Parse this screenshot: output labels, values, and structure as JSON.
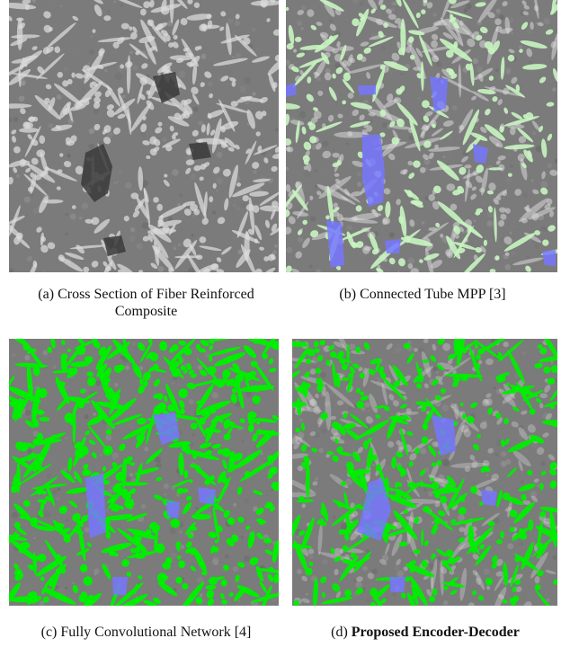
{
  "figure": {
    "panels": [
      {
        "id": "a",
        "caption_label": "(a)",
        "caption_text": "Cross Section of Fiber Reinforced Composite",
        "caption_bold": false,
        "overlay": "none"
      },
      {
        "id": "b",
        "caption_label": "(b)",
        "caption_text": "Connected Tube MPP [3]",
        "caption_bold": false,
        "overlay": "sparse-light-green-fibers-with-blue-voids"
      },
      {
        "id": "c",
        "caption_label": "(c)",
        "caption_text": "Fully Convolutional Network [4]",
        "caption_bold": false,
        "overlay": "dense-green-fibers-with-blue-voids"
      },
      {
        "id": "d",
        "caption_label": "(d)",
        "caption_text": "Proposed Encoder-Decoder",
        "caption_bold": true,
        "overlay": "thin-green-fibers-with-blue-voids"
      }
    ],
    "colors": {
      "background_gray": "#7b7b7b",
      "fiber_gray": "#d9d9d9",
      "void_dark": "#3a3a3a",
      "fiber_green": "#00ee00",
      "fiber_light_green": "#c8f5c0",
      "void_blue": "#7777ff"
    }
  }
}
